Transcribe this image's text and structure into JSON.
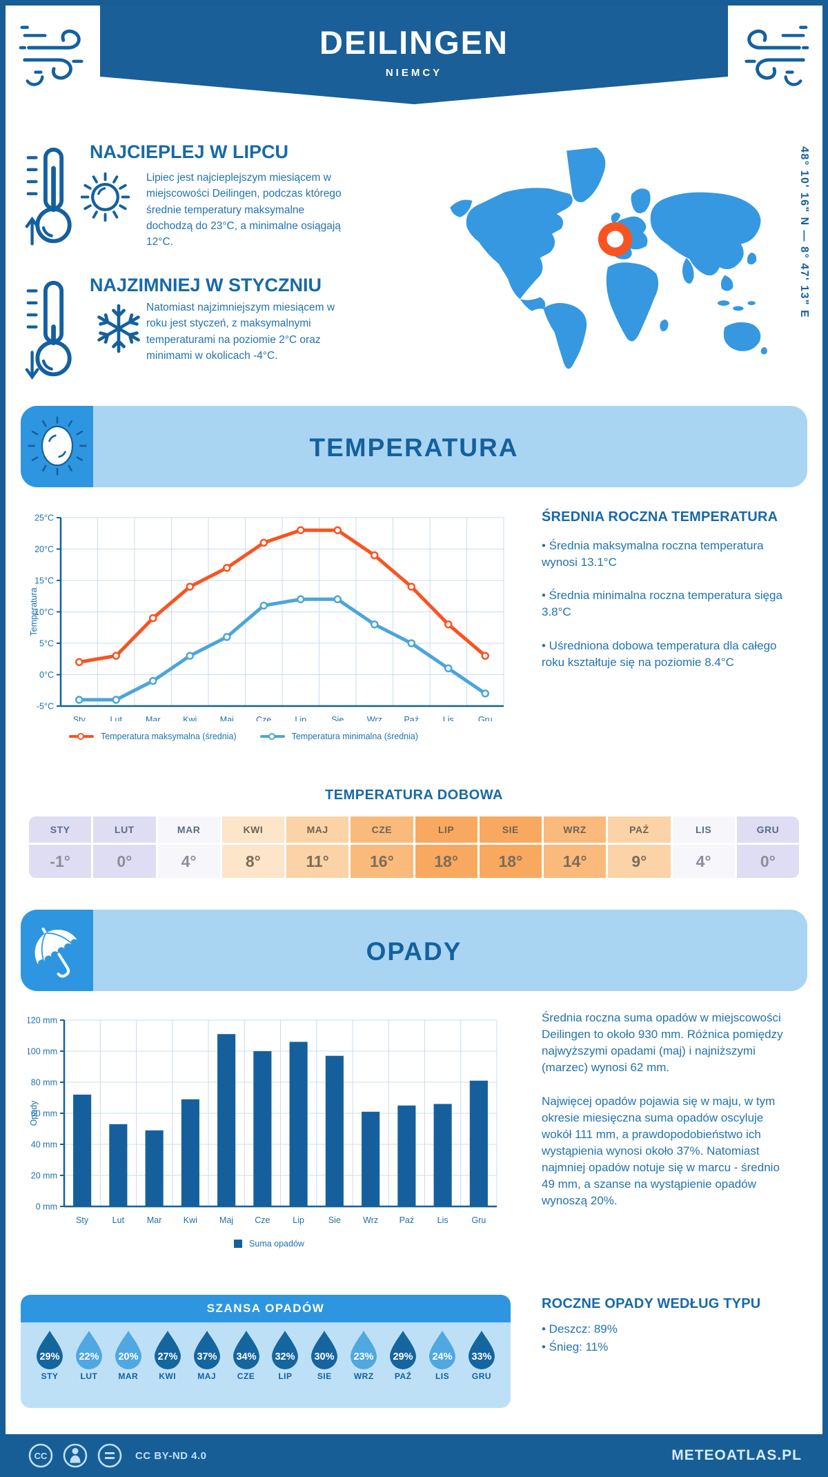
{
  "header": {
    "title": "DEILINGEN",
    "subtitle": "NIEMCY"
  },
  "location": {
    "coordinates": "48° 10' 16\" N — 8° 47' 13\" E"
  },
  "highlights": [
    {
      "title": "NAJCIEPLEJ W LIPCU",
      "text": "Lipiec jest najcieplejszym miesiącem w miejscowości Deilingen, podczas którego średnie temperatury maksymalne dochodzą do 23°C, a minimalne osiągają 12°C."
    },
    {
      "title": "NAJZIMNIEJ W STYCZNIU",
      "text": "Natomiast najzimniejszym miesiącem w roku jest styczeń, z maksymalnymi temperaturami na poziomie 2°C oraz minimami w okolicach -4°C."
    }
  ],
  "temperature_section": {
    "banner_title": "TEMPERATURA",
    "summary_title": "ŚREDNIA ROCZNA TEMPERATURA",
    "summary_bullets": [
      "• Średnia maksymalna roczna temperatura wynosi 13.1°C",
      "• Średnia minimalna roczna temperatura sięga 3.8°C",
      "• Uśredniona dobowa temperatura dla całego roku kształtuje się na poziomie 8.4°C"
    ],
    "daily_title": "TEMPERATURA DOBOWA",
    "daily_table": {
      "months": [
        "STY",
        "LUT",
        "MAR",
        "KWI",
        "MAJ",
        "CZE",
        "LIP",
        "SIE",
        "WRZ",
        "PAŹ",
        "LIS",
        "GRU"
      ],
      "values": [
        "-1°",
        "0°",
        "4°",
        "8°",
        "11°",
        "16°",
        "18°",
        "18°",
        "14°",
        "9°",
        "4°",
        "0°"
      ],
      "cell_colors": [
        "#DEDDF3",
        "#DEDDF3",
        "#F6F6FB",
        "#FDE5CA",
        "#FBD3A7",
        "#F9BA7B",
        "#F8A95F",
        "#F8A95F",
        "#F9BA7B",
        "#FBD3A7",
        "#F6F6FB",
        "#DEDDF3"
      ],
      "variants": [
        "cool",
        "cool",
        "cool",
        "warm",
        "warm",
        "warm",
        "warm",
        "warm",
        "warm",
        "warm",
        "cool",
        "cool"
      ]
    }
  },
  "precipitation_section": {
    "banner_title": "OPADY",
    "summary_paragraphs": [
      "Średnia roczna suma opadów w miejscowości Deilingen to około 930 mm. Różnica pomiędzy najwyższymi opadami (maj) i najniższymi (marzec) wynosi 62 mm.",
      "Najwięcej opadów pojawia się w maju, w tym okresie miesięczna suma opadów oscyluje wokół 111 mm, a prawdopodobieństwo ich wystąpienia wynosi około 37%. Natomiast najmniej opadów notuje się w marcu - średnio 49 mm, a szanse na wystąpienie opadów wynoszą 20%."
    ],
    "chance": {
      "title": "SZANSA OPADÓW",
      "months": [
        "STY",
        "LUT",
        "MAR",
        "KWI",
        "MAJ",
        "CZE",
        "LIP",
        "SIE",
        "WRZ",
        "PAŹ",
        "LIS",
        "GRU"
      ],
      "values": [
        "29%",
        "22%",
        "20%",
        "27%",
        "37%",
        "34%",
        "32%",
        "30%",
        "23%",
        "29%",
        "24%",
        "33%"
      ],
      "variants": [
        "dark",
        "light",
        "light",
        "dark",
        "dark",
        "dark",
        "dark",
        "dark",
        "light",
        "dark",
        "light",
        "dark"
      ]
    },
    "by_type": {
      "title": "ROCZNE OPADY WEDŁUG TYPU",
      "bullets": [
        "• Deszcz: 89%",
        "• Śnieg: 11%"
      ]
    }
  },
  "footer": {
    "license": "CC BY-ND 4.0",
    "site": "METEOATLAS.PL"
  },
  "colors": {
    "brand_dark": "#175E97",
    "accent_blue": "#2E96E0",
    "banner_light": "#A9D5F3",
    "heading_blue": "#1769A8",
    "body_blue": "#2273AF",
    "map_blue": "#3598E0",
    "marker_orange": "#F95321",
    "chart_red": "#F95321",
    "chart_blue": "#4BA5DC",
    "bar_blue": "#15609C",
    "droplet_dark": "#15659F",
    "droplet_light": "#4FA8E0",
    "chance_body": "#BEE0F7",
    "grid": "#C9DCEE"
  },
  "chart_data": [
    {
      "type": "line",
      "x": [
        "Sty",
        "Lut",
        "Mar",
        "Kwi",
        "Maj",
        "Cze",
        "Lip",
        "Sie",
        "Wrz",
        "Paź",
        "Lis",
        "Gru"
      ],
      "ylabel": "Temperatura",
      "ylim": [
        -5,
        25
      ],
      "yticks": [
        25,
        20,
        15,
        10,
        5,
        0,
        -5
      ],
      "y_suffix": "°C",
      "grid": true,
      "legend_position": "bottom",
      "series": [
        {
          "name": "Temperatura maksymalna (średnia)",
          "color": "#F95321",
          "values": [
            2,
            3,
            9,
            14,
            17,
            21,
            23,
            23,
            19,
            14,
            8,
            3
          ]
        },
        {
          "name": "Temperatura minimalna (średnia)",
          "color": "#4BA5DC",
          "values": [
            -4,
            -4,
            -1,
            3,
            6,
            11,
            12,
            12,
            8,
            5,
            1,
            -3
          ]
        }
      ]
    },
    {
      "type": "bar",
      "x": [
        "Sty",
        "Lut",
        "Mar",
        "Kwi",
        "Maj",
        "Cze",
        "Lip",
        "Sie",
        "Wrz",
        "Paź",
        "Lis",
        "Gru"
      ],
      "ylabel": "Opady",
      "ylim": [
        0,
        120
      ],
      "yticks": [
        120,
        100,
        80,
        60,
        40,
        20,
        0
      ],
      "y_suffix": " mm",
      "grid": true,
      "legend_position": "bottom",
      "series": [
        {
          "name": "Suma opadów",
          "color": "#15609C",
          "values": [
            72,
            53,
            49,
            69,
            111,
            100,
            106,
            97,
            61,
            65,
            66,
            81
          ]
        }
      ]
    }
  ]
}
